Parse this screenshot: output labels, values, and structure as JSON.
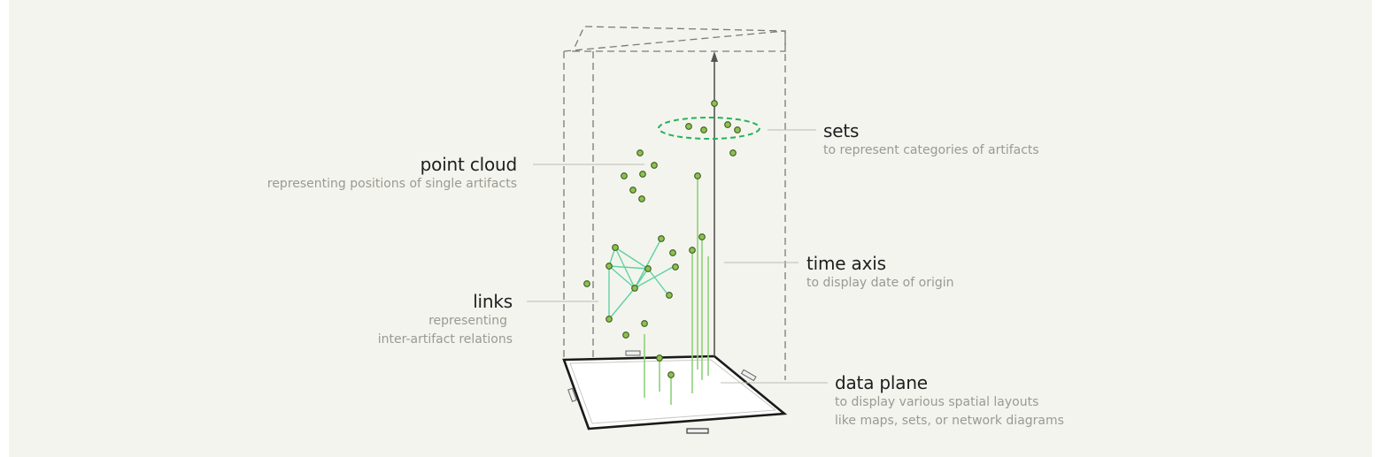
{
  "labels": {
    "point_cloud": {
      "title": "point cloud",
      "subtitle": "representing positions of single artifacts"
    },
    "links": {
      "title": "links",
      "subtitle_line1": "representing",
      "subtitle_line2": "inter-artifact relations"
    },
    "sets": {
      "title": "sets",
      "subtitle": "to represent categories of artifacts"
    },
    "time_axis": {
      "title": "time axis",
      "subtitle": "to display date of origin"
    },
    "data_plane": {
      "title": "data plane",
      "subtitle_line1": "to display various spatial layouts",
      "subtitle_line2": "like maps, sets, or network diagrams"
    }
  },
  "colors": {
    "background": "#f4f4ee",
    "point_fill": "#8cc152",
    "point_stroke": "#3a5a1a",
    "link": "#5fd3a0",
    "set_ellipse": "#22b45a",
    "stem": "#8ed07a",
    "leader": "#bdbdb8",
    "box": "#7a7a7a",
    "plane": "#1a1a1a"
  },
  "icons": [
    "time-axis-arrow-icon",
    "data-plane-handle-icon"
  ]
}
